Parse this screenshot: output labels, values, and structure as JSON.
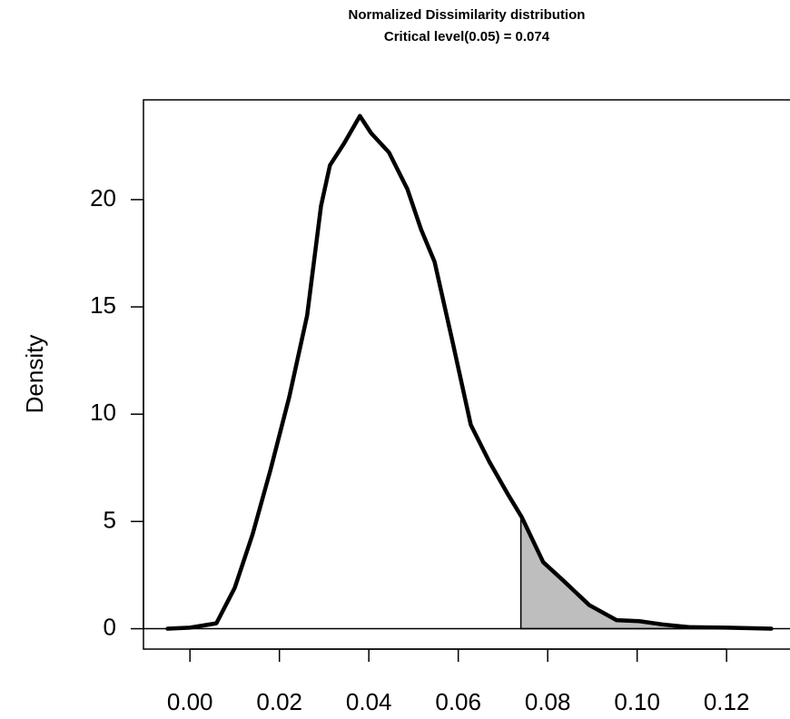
{
  "chart_data": {
    "type": "density",
    "title": "Normalized Dissimilarity distribution",
    "subtitle": "Critical level(0.05) =  0.074",
    "y_label": "Density",
    "critical_value": 0.074,
    "x": [
      -0.005,
      0.0,
      0.0059,
      0.01,
      0.014,
      0.018,
      0.0222,
      0.0262,
      0.0293,
      0.0313,
      0.0344,
      0.038,
      0.0405,
      0.0445,
      0.0486,
      0.0517,
      0.0547,
      0.0588,
      0.0628,
      0.0669,
      0.071,
      0.0742,
      0.079,
      0.0832,
      0.0893,
      0.0954,
      0.1005,
      0.1056,
      0.1117,
      0.12,
      0.13
    ],
    "values": [
      0,
      0.05,
      0.25,
      1.9,
      4.4,
      7.4,
      10.8,
      14.6,
      19.7,
      21.6,
      22.6,
      23.9,
      23.1,
      22.2,
      20.5,
      18.6,
      17.1,
      13.3,
      9.5,
      7.8,
      6.3,
      5.2,
      3.1,
      2.3,
      1.1,
      0.4,
      0.35,
      0.2,
      0.07,
      0.05,
      0
    ],
    "color": "#000000",
    "fill_color": "#bebebe",
    "xlim": [
      -0.0104,
      0.1354
    ],
    "ylim": [
      -0.95,
      24.65
    ],
    "xticks": [
      {
        "value": 0,
        "label": "0.00"
      },
      {
        "value": 0.02,
        "label": "0.02"
      },
      {
        "value": 0.04,
        "label": "0.04"
      },
      {
        "value": 0.06,
        "label": "0.06"
      },
      {
        "value": 0.08,
        "label": "0.08"
      },
      {
        "value": 0.1,
        "label": "0.10"
      },
      {
        "value": 0.12,
        "label": "0.12"
      }
    ],
    "yticks": [
      0,
      5,
      10,
      15,
      20
    ]
  }
}
